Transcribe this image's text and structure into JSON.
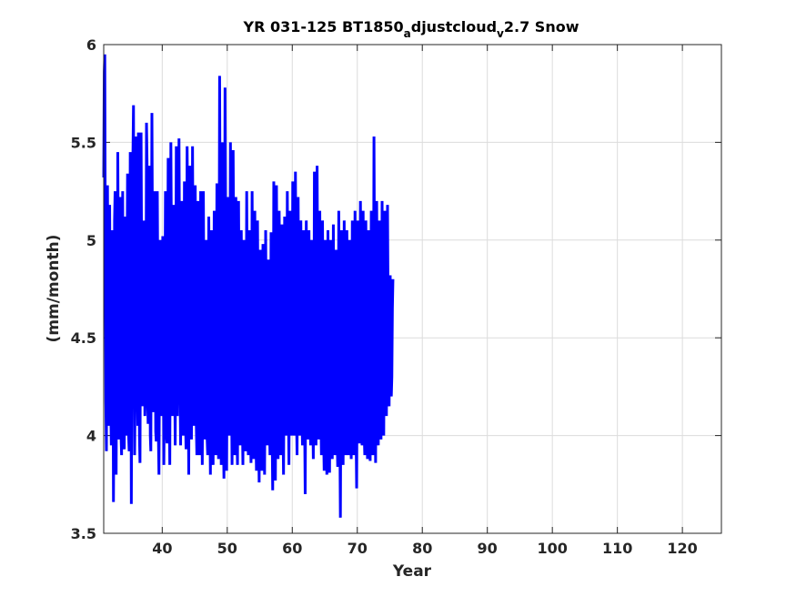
{
  "chart_data": {
    "type": "line",
    "title": {
      "part1": "YR 031-125 BT1850",
      "sub1": "a",
      "part2": "djustcloud",
      "sub2": "v",
      "part3": "2.7 Snow"
    },
    "xlabel": "Year",
    "ylabel": "(mm/month)",
    "xlim": [
      31,
      126
    ],
    "ylim": [
      3.5,
      6
    ],
    "xticks": [
      40,
      50,
      60,
      70,
      80,
      90,
      100,
      110,
      120
    ],
    "xtick_labels": [
      "40",
      "50",
      "60",
      "70",
      "80",
      "90",
      "100",
      "110",
      "120"
    ],
    "yticks": [
      3.5,
      4,
      4.5,
      5,
      5.5,
      6
    ],
    "ytick_labels": [
      "3.5",
      "4",
      "4.5",
      "5",
      "5.5",
      "6"
    ],
    "grid": true,
    "line_color": "#0000ff",
    "series": [
      {
        "x_start": 31,
        "step": 0.0833,
        "values": [
          5.32,
          5.86,
          5.95,
          4.85,
          4.18,
          3.92,
          4.9,
          5.28,
          4.6,
          4.3,
          4.05,
          5.18,
          4.62,
          4.15,
          3.95,
          4.65,
          5.05,
          4.62,
          3.66,
          4.2,
          5.1,
          5.25,
          4.5,
          3.8,
          4.62,
          4.2,
          5.45,
          4.88,
          3.98,
          4.6,
          5.22,
          4.55,
          4.0,
          3.9,
          4.65,
          5.25,
          4.5,
          4.0,
          3.93,
          4.64,
          5.12,
          4.48,
          4.0,
          4.8,
          5.34,
          4.7,
          4.0,
          3.92,
          4.55,
          5.45,
          4.9,
          3.65,
          4.4,
          5.2,
          5.45,
          5.69,
          4.7,
          3.9,
          4.2,
          4.65,
          5.53,
          5.0,
          4.4,
          4.05,
          5.55,
          4.8,
          4.0,
          3.86,
          4.62,
          5.55,
          4.9,
          4.3,
          4.15,
          4.5,
          5.1,
          4.6,
          4.1,
          4.22,
          4.5,
          5.6,
          5.4,
          4.2,
          4.06,
          4.65,
          5.38,
          5.2,
          4.0,
          3.92,
          4.7,
          5.65,
          5.02,
          4.3,
          4.12,
          4.75,
          5.25,
          4.6,
          4.02,
          3.97,
          4.6,
          5.25,
          4.7,
          4.0,
          3.8,
          4.33,
          5.0,
          4.55,
          4.1,
          4.55,
          4.3,
          5.02,
          4.55,
          3.85,
          4.2,
          4.62,
          5.25,
          4.8,
          4.0,
          3.96,
          4.68,
          5.42,
          4.9,
          4.2,
          3.85,
          4.6,
          5.5,
          5.0,
          4.5,
          4.1,
          4.8,
          5.18,
          4.85,
          4.3,
          3.95,
          4.5,
          5.48,
          4.9,
          4.1,
          4.62,
          4.8,
          5.52,
          4.95,
          4.2,
          3.95,
          4.5,
          5.2,
          4.75,
          4.2,
          4.0,
          4.5,
          5.3,
          4.8,
          4.1,
          3.93,
          4.6,
          5.48,
          5.15,
          4.3,
          3.8,
          4.55,
          5.38,
          4.9,
          4.1,
          3.98,
          4.6,
          5.48,
          4.85,
          4.2,
          4.05,
          4.5,
          5.28,
          4.7,
          4.05,
          3.9,
          4.45,
          5.2,
          4.65,
          4.0,
          3.9,
          4.5,
          5.25,
          4.8,
          4.2,
          3.85,
          4.45,
          5.25,
          4.7,
          4.1,
          3.98,
          4.45,
          5.0,
          4.55,
          3.98,
          3.9,
          4.5,
          5.12,
          4.68,
          4.1,
          3.8,
          4.4,
          5.05,
          4.55,
          4.0,
          3.85,
          4.55,
          5.15,
          4.7,
          4.1,
          3.9,
          4.55,
          5.29,
          4.85,
          4.2,
          3.88,
          4.65,
          5.84,
          5.1,
          4.25,
          3.85,
          4.6,
          5.5,
          4.9,
          4.0,
          3.78,
          4.55,
          5.78,
          5.1,
          4.2,
          3.82,
          4.5,
          5.22,
          4.8,
          4.15,
          4.0,
          4.6,
          5.5,
          4.9,
          4.2,
          3.85,
          4.5,
          5.46,
          4.95,
          4.2,
          3.9,
          4.5,
          5.22,
          4.7,
          4.0,
          3.85,
          4.4,
          5.2,
          4.7,
          4.1,
          3.95,
          4.5,
          5.05,
          4.65,
          4.1,
          3.85,
          4.4,
          5.0,
          4.6,
          4.0,
          3.92,
          4.45,
          5.25,
          4.7,
          4.0,
          3.9,
          4.35,
          5.05,
          4.55,
          4.0,
          3.86,
          4.4,
          5.25,
          4.7,
          4.1,
          3.88,
          4.45,
          5.15,
          4.65,
          4.0,
          3.82,
          4.4,
          5.1,
          4.6,
          4.0,
          3.76,
          4.3,
          4.95,
          4.5,
          4.0,
          3.82,
          4.35,
          4.98,
          4.5,
          3.98,
          3.8,
          4.35,
          5.05,
          4.6,
          4.1,
          3.95,
          4.4,
          4.9,
          4.55,
          4.1,
          3.9,
          4.4,
          5.04,
          4.55,
          4.0,
          3.72,
          4.3,
          5.3,
          4.8,
          4.2,
          3.77,
          4.4,
          5.28,
          4.75,
          4.1,
          3.88,
          4.4,
          5.15,
          4.7,
          4.15,
          3.9,
          4.35,
          5.08,
          4.6,
          4.05,
          3.8,
          4.3,
          5.12,
          4.6,
          4.1,
          4.0,
          4.45,
          5.25,
          4.75,
          4.15,
          3.85,
          4.4,
          5.15,
          4.6,
          4.05,
          4.0,
          4.5,
          5.3,
          4.82,
          4.2,
          4.0,
          4.5,
          5.35,
          4.82,
          4.1,
          3.9,
          4.5,
          5.22,
          4.7,
          4.2,
          4.0,
          4.55,
          5.1,
          4.65,
          4.1,
          3.95,
          4.45,
          5.05,
          4.6,
          4.05,
          3.7,
          4.3,
          5.1,
          4.6,
          4.1,
          3.98,
          4.45,
          5.05,
          4.6,
          4.1,
          3.95,
          4.4,
          5.0,
          4.6,
          4.1,
          3.88,
          4.4,
          5.35,
          4.8,
          4.15,
          3.95,
          4.5,
          5.38,
          4.85,
          4.2,
          3.98,
          4.5,
          5.15,
          4.65,
          4.1,
          3.9,
          4.45,
          5.1,
          4.55,
          4.0,
          3.82,
          4.3,
          5.0,
          4.55,
          4.0,
          3.8,
          4.35,
          5.05,
          4.5,
          3.9,
          3.81,
          4.35,
          5.0,
          4.55,
          4.0,
          3.88,
          4.35,
          5.08,
          4.6,
          4.05,
          3.9,
          4.4,
          4.95,
          4.5,
          4.0,
          3.84,
          4.35,
          5.15,
          4.6,
          4.0,
          3.58,
          4.3,
          5.05,
          4.55,
          4.0,
          3.85,
          4.35,
          5.1,
          4.6,
          4.0,
          3.9,
          4.4,
          5.05,
          4.6,
          4.05,
          3.9,
          4.4,
          5.0,
          4.55,
          4.0,
          3.88,
          4.4,
          5.1,
          4.6,
          4.05,
          3.9,
          4.5,
          5.15,
          4.65,
          4.0,
          3.73,
          4.35,
          5.1,
          4.6,
          4.1,
          3.96,
          4.45,
          5.2,
          4.7,
          4.1,
          3.95,
          4.5,
          5.15,
          4.6,
          4.0,
          3.9,
          4.4,
          5.1,
          4.6,
          4.05,
          3.88,
          4.35,
          5.05,
          4.55,
          4.0,
          3.87,
          4.4,
          5.15,
          4.65,
          4.1,
          3.9,
          4.5,
          5.53,
          4.9,
          4.2,
          3.86,
          4.5,
          5.2,
          4.7,
          4.1,
          3.95,
          4.45,
          5.1,
          4.6,
          4.1,
          3.98,
          4.4,
          5.2,
          4.7,
          4.15,
          4.0,
          4.5,
          5.15,
          4.6,
          4.2,
          4.1,
          4.6,
          5.18,
          4.7,
          4.2,
          4.15,
          4.6,
          4.82,
          4.4,
          4.2,
          4.3,
          4.65,
          4.8
        ]
      }
    ]
  }
}
